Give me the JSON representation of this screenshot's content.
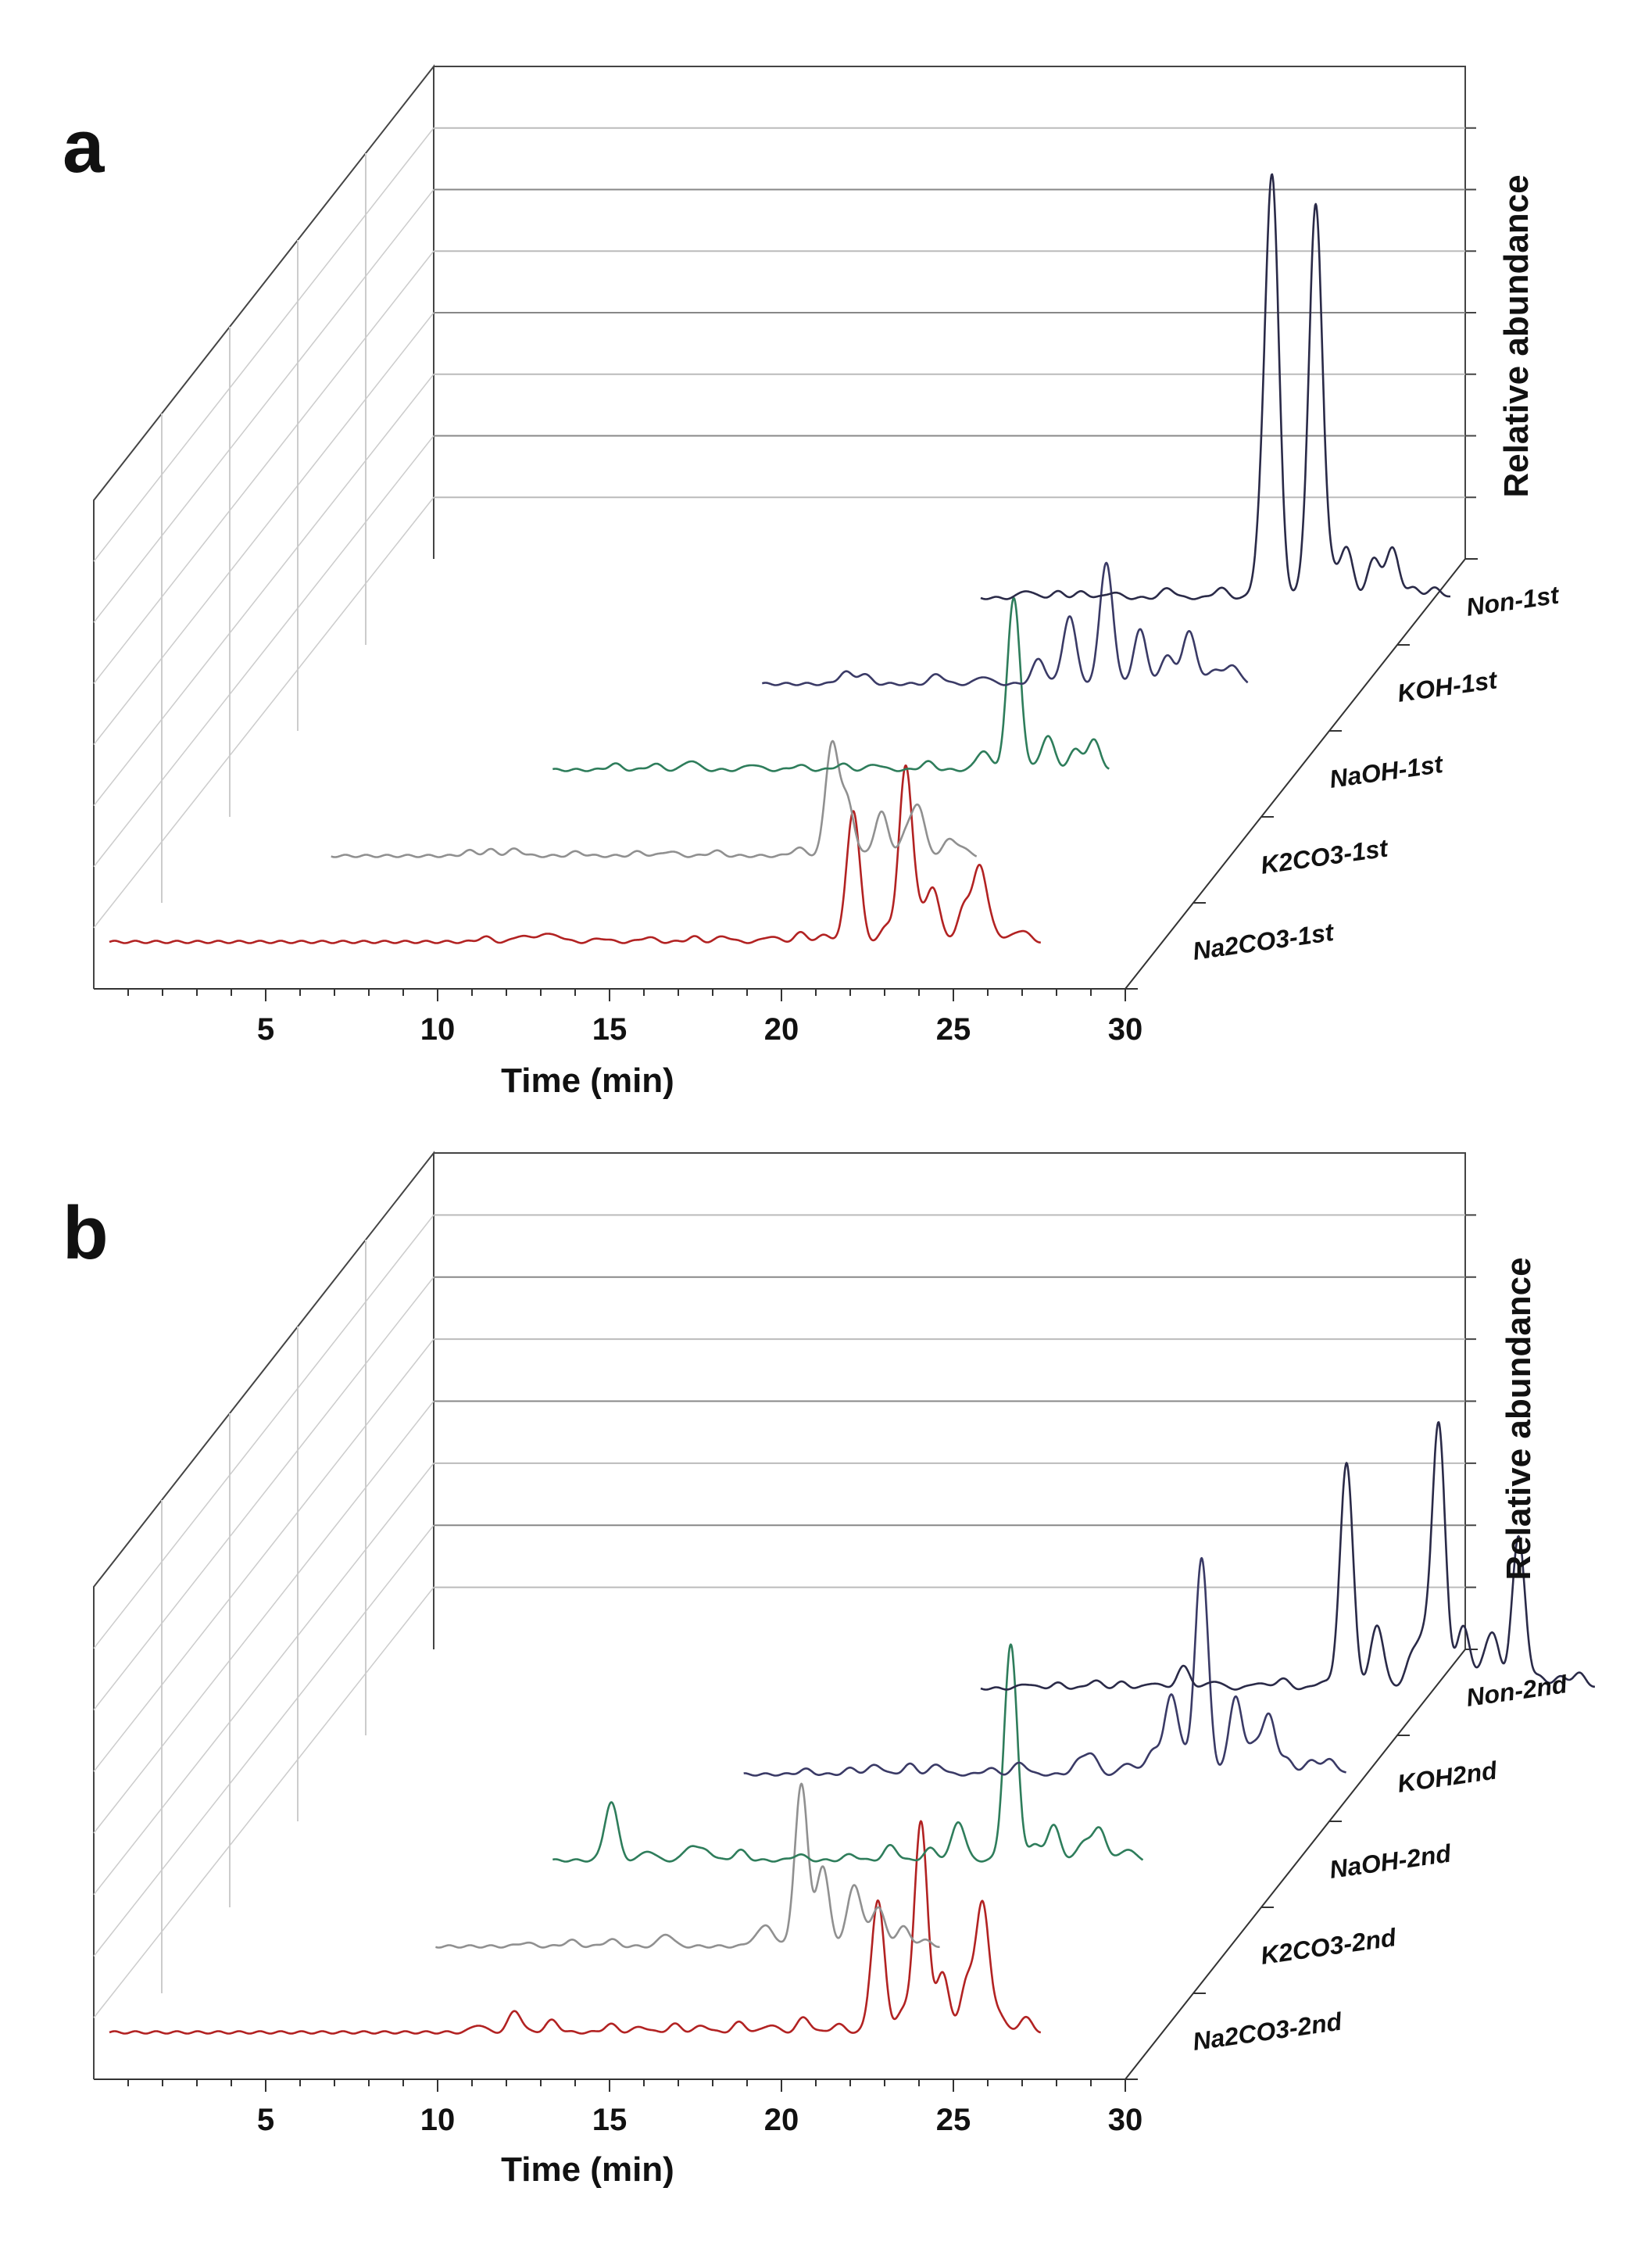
{
  "chart_data": [
    {
      "type": "line",
      "subtype": "3d-waterfall",
      "panel": "a",
      "xlabel": "Time (min)",
      "zlabel": "Relative abundance",
      "xlim": [
        0,
        30
      ],
      "xticks": [
        5,
        10,
        15,
        20,
        25,
        30
      ],
      "series": [
        {
          "name": "Na2CO3-1st",
          "color": "#b22222",
          "start": 0,
          "peaks": [
            [
              12.2,
              0.05
            ],
            [
              13.4,
              0.07
            ],
            [
              14.1,
              0.08
            ],
            [
              14.6,
              0.06
            ],
            [
              16.0,
              0.04
            ],
            [
              17.5,
              0.05
            ],
            [
              19.0,
              0.05
            ],
            [
              20.0,
              0.06
            ],
            [
              21.5,
              0.06
            ],
            [
              22.5,
              0.09
            ],
            [
              23.3,
              0.07
            ],
            [
              24.2,
              1.35
            ],
            [
              25.3,
              0.15
            ],
            [
              25.9,
              1.75
            ],
            [
              26.3,
              0.25
            ],
            [
              26.8,
              0.55
            ],
            [
              27.8,
              0.35
            ],
            [
              28.3,
              0.75
            ],
            [
              28.7,
              0.15
            ],
            [
              29.5,
              0.08
            ],
            [
              29.8,
              0.07
            ]
          ]
        },
        {
          "name": "K2CO3-1st",
          "color": "#909090",
          "start": 5.0,
          "peaks": [
            [
              9.5,
              0.05
            ],
            [
              10.2,
              0.06
            ],
            [
              11.0,
              0.07
            ],
            [
              13.0,
              0.04
            ],
            [
              15.0,
              0.04
            ],
            [
              16.0,
              0.05
            ],
            [
              17.5,
              0.05
            ],
            [
              20.2,
              0.08
            ],
            [
              21.3,
              1.15
            ],
            [
              21.8,
              0.55
            ],
            [
              22.9,
              0.45
            ],
            [
              23.7,
              0.2
            ],
            [
              24.1,
              0.5
            ],
            [
              25.1,
              0.15
            ],
            [
              25.5,
              0.08
            ]
          ]
        },
        {
          "name": "NaOH-1st",
          "color": "#2e7d5b",
          "start": 10.0,
          "peaks": [
            [
              12.0,
              0.06
            ],
            [
              13.3,
              0.06
            ],
            [
              14.5,
              0.1
            ],
            [
              16.5,
              0.06
            ],
            [
              18.0,
              0.05
            ],
            [
              19.4,
              0.06
            ],
            [
              20.5,
              0.06
            ],
            [
              22.2,
              0.08
            ],
            [
              24.0,
              0.2
            ],
            [
              25.0,
              1.75
            ],
            [
              26.1,
              0.35
            ],
            [
              27.0,
              0.2
            ],
            [
              27.6,
              0.3
            ]
          ]
        },
        {
          "name": "KOH-1st",
          "color": "#3a3a66",
          "start": 14.6,
          "peaks": [
            [
              17.3,
              0.12
            ],
            [
              17.9,
              0.1
            ],
            [
              20.3,
              0.1
            ],
            [
              21.8,
              0.08
            ],
            [
              23.6,
              0.25
            ],
            [
              24.6,
              0.7
            ],
            [
              25.8,
              1.25
            ],
            [
              26.9,
              0.55
            ],
            [
              27.8,
              0.3
            ],
            [
              28.5,
              0.55
            ],
            [
              29.3,
              0.15
            ],
            [
              29.9,
              0.2
            ]
          ]
        },
        {
          "name": "Non-1st",
          "color": "#2a2a48",
          "start": 19.5,
          "peaks": [
            [
              21.0,
              0.08
            ],
            [
              22.0,
              0.06
            ],
            [
              22.8,
              0.06
            ],
            [
              23.8,
              0.06
            ],
            [
              25.6,
              0.1
            ],
            [
              27.3,
              0.1
            ],
            [
              28.7,
              0.85
            ],
            [
              29.0,
              4.0
            ],
            [
              30.0,
              0.15
            ],
            [
              30.4,
              4.0
            ],
            [
              30.9,
              0.25
            ],
            [
              31.4,
              0.5
            ],
            [
              32.3,
              0.4
            ],
            [
              32.9,
              0.5
            ],
            [
              33.6,
              0.1
            ],
            [
              34.3,
              0.1
            ]
          ]
        }
      ],
      "labels": [
        "Non-1st",
        "KOH-1st",
        "NaOH-1st",
        "K2CO3-1st",
        "Na2CO3-1st"
      ]
    },
    {
      "type": "line",
      "subtype": "3d-waterfall",
      "panel": "b",
      "xlabel": "Time (min)",
      "zlabel": "Relative abundance",
      "xlim": [
        0,
        30
      ],
      "xticks": [
        5,
        10,
        15,
        20,
        25,
        30
      ],
      "series": [
        {
          "name": "Na2CO3-2nd",
          "color": "#b22222",
          "start": 0,
          "peaks": [
            [
              12.0,
              0.08
            ],
            [
              13.2,
              0.22
            ],
            [
              14.4,
              0.12
            ],
            [
              16.3,
              0.08
            ],
            [
              17.3,
              0.06
            ],
            [
              18.4,
              0.08
            ],
            [
              19.3,
              0.07
            ],
            [
              20.5,
              0.1
            ],
            [
              21.5,
              0.08
            ],
            [
              22.6,
              0.15
            ],
            [
              23.7,
              0.08
            ],
            [
              25.0,
              1.35
            ],
            [
              25.8,
              0.2
            ],
            [
              26.4,
              2.15
            ],
            [
              27.1,
              0.6
            ],
            [
              27.9,
              0.5
            ],
            [
              28.4,
              1.3
            ],
            [
              28.9,
              0.2
            ],
            [
              29.8,
              0.15
            ]
          ]
        },
        {
          "name": "K2CO3-2nd",
          "color": "#909090",
          "start": 8.4,
          "peaks": [
            [
              11.3,
              0.04
            ],
            [
              12.8,
              0.06
            ],
            [
              14.1,
              0.07
            ],
            [
              15.9,
              0.13
            ],
            [
              18.8,
              0.08
            ],
            [
              19.2,
              0.2
            ],
            [
              20.3,
              1.65
            ],
            [
              21.0,
              0.8
            ],
            [
              22.0,
              0.6
            ],
            [
              22.3,
              0.1
            ],
            [
              22.8,
              0.4
            ],
            [
              23.6,
              0.2
            ],
            [
              24.3,
              0.06
            ]
          ]
        },
        {
          "name": "NaOH-2nd",
          "color": "#2e7d5b",
          "start": 10.0,
          "peaks": [
            [
              11.9,
              0.6
            ],
            [
              13.1,
              0.1
            ],
            [
              14.5,
              0.15
            ],
            [
              15.0,
              0.1
            ],
            [
              16.1,
              0.1
            ],
            [
              18.0,
              0.06
            ],
            [
              19.7,
              0.06
            ],
            [
              21.0,
              0.15
            ],
            [
              22.3,
              0.12
            ],
            [
              23.2,
              0.4
            ],
            [
              24.9,
              2.2
            ],
            [
              25.7,
              0.15
            ],
            [
              26.3,
              0.35
            ],
            [
              27.3,
              0.2
            ],
            [
              27.8,
              0.32
            ],
            [
              28.7,
              0.12
            ]
          ]
        },
        {
          "name": "KOH2nd",
          "color": "#3a3a66",
          "start": 14.0,
          "peaks": [
            [
              16.0,
              0.05
            ],
            [
              17.5,
              0.06
            ],
            [
              18.3,
              0.1
            ],
            [
              19.4,
              0.1
            ],
            [
              20.3,
              0.1
            ],
            [
              22.0,
              0.06
            ],
            [
              23.0,
              0.12
            ],
            [
              24.9,
              0.12
            ],
            [
              25.3,
              0.2
            ],
            [
              26.5,
              0.12
            ],
            [
              27.3,
              0.25
            ],
            [
              27.9,
              0.8
            ],
            [
              28.3,
              0.15
            ],
            [
              28.9,
              2.2
            ],
            [
              30.0,
              0.8
            ],
            [
              30.6,
              0.3
            ],
            [
              31.1,
              0.6
            ],
            [
              31.7,
              0.15
            ],
            [
              32.5,
              0.15
            ],
            [
              33.1,
              0.15
            ]
          ]
        },
        {
          "name": "Non-2nd",
          "color": "#2a2a48",
          "start": 19.5,
          "peaks": [
            [
              21.0,
              0.05
            ],
            [
              22.0,
              0.05
            ],
            [
              23.2,
              0.08
            ],
            [
              24.1,
              0.06
            ],
            [
              25.1,
              0.06
            ],
            [
              26.1,
              0.22
            ],
            [
              27.1,
              0.08
            ],
            [
              28.5,
              0.06
            ],
            [
              29.3,
              0.1
            ],
            [
              30.6,
              0.07
            ],
            [
              31.4,
              2.3
            ],
            [
              32.4,
              0.65
            ],
            [
              33.5,
              0.28
            ],
            [
              33.9,
              0.45
            ],
            [
              34.4,
              2.7
            ],
            [
              35.2,
              0.65
            ],
            [
              35.9,
              0.25
            ],
            [
              36.2,
              0.45
            ],
            [
              37.0,
              1.55
            ],
            [
              37.7,
              0.12
            ],
            [
              38.4,
              0.12
            ],
            [
              39.0,
              0.15
            ]
          ]
        }
      ],
      "labels": [
        "Non-2nd",
        "KOH2nd",
        "NaOH-2nd",
        "K2CO3-2nd",
        "Na2CO3-2nd"
      ]
    }
  ]
}
